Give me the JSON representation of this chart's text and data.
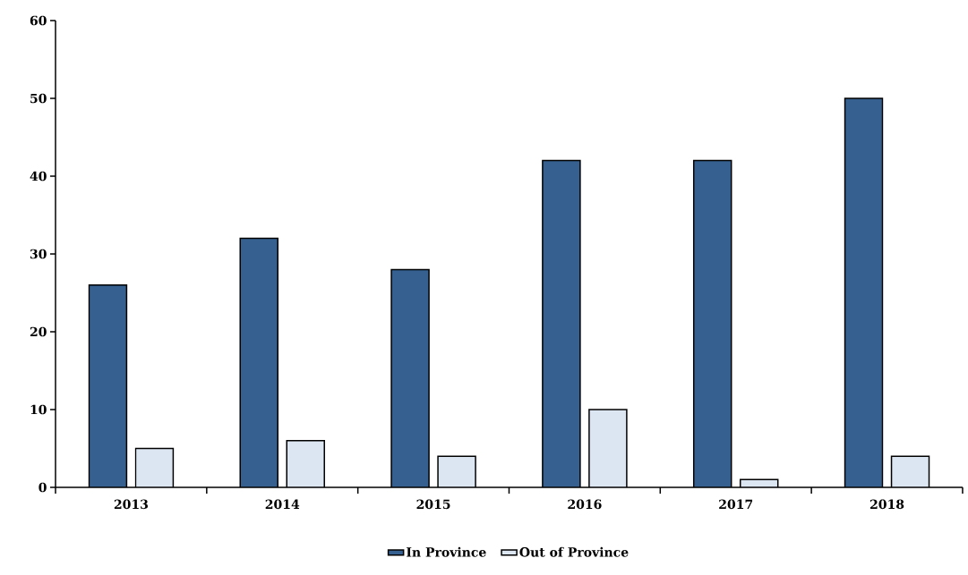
{
  "chart_data": {
    "type": "bar",
    "categories": [
      "2013",
      "2014",
      "2015",
      "2016",
      "2017",
      "2018"
    ],
    "series": [
      {
        "name": "In Province",
        "color": "#35608f",
        "values": [
          26,
          32,
          28,
          42,
          42,
          50
        ]
      },
      {
        "name": "Out of Province",
        "color": "#dce6f2",
        "values": [
          5,
          6,
          4,
          10,
          1,
          4
        ]
      }
    ],
    "ylim": [
      0,
      60
    ],
    "yticks": [
      0,
      10,
      20,
      30,
      40,
      50,
      60
    ],
    "legend": "bottom"
  }
}
